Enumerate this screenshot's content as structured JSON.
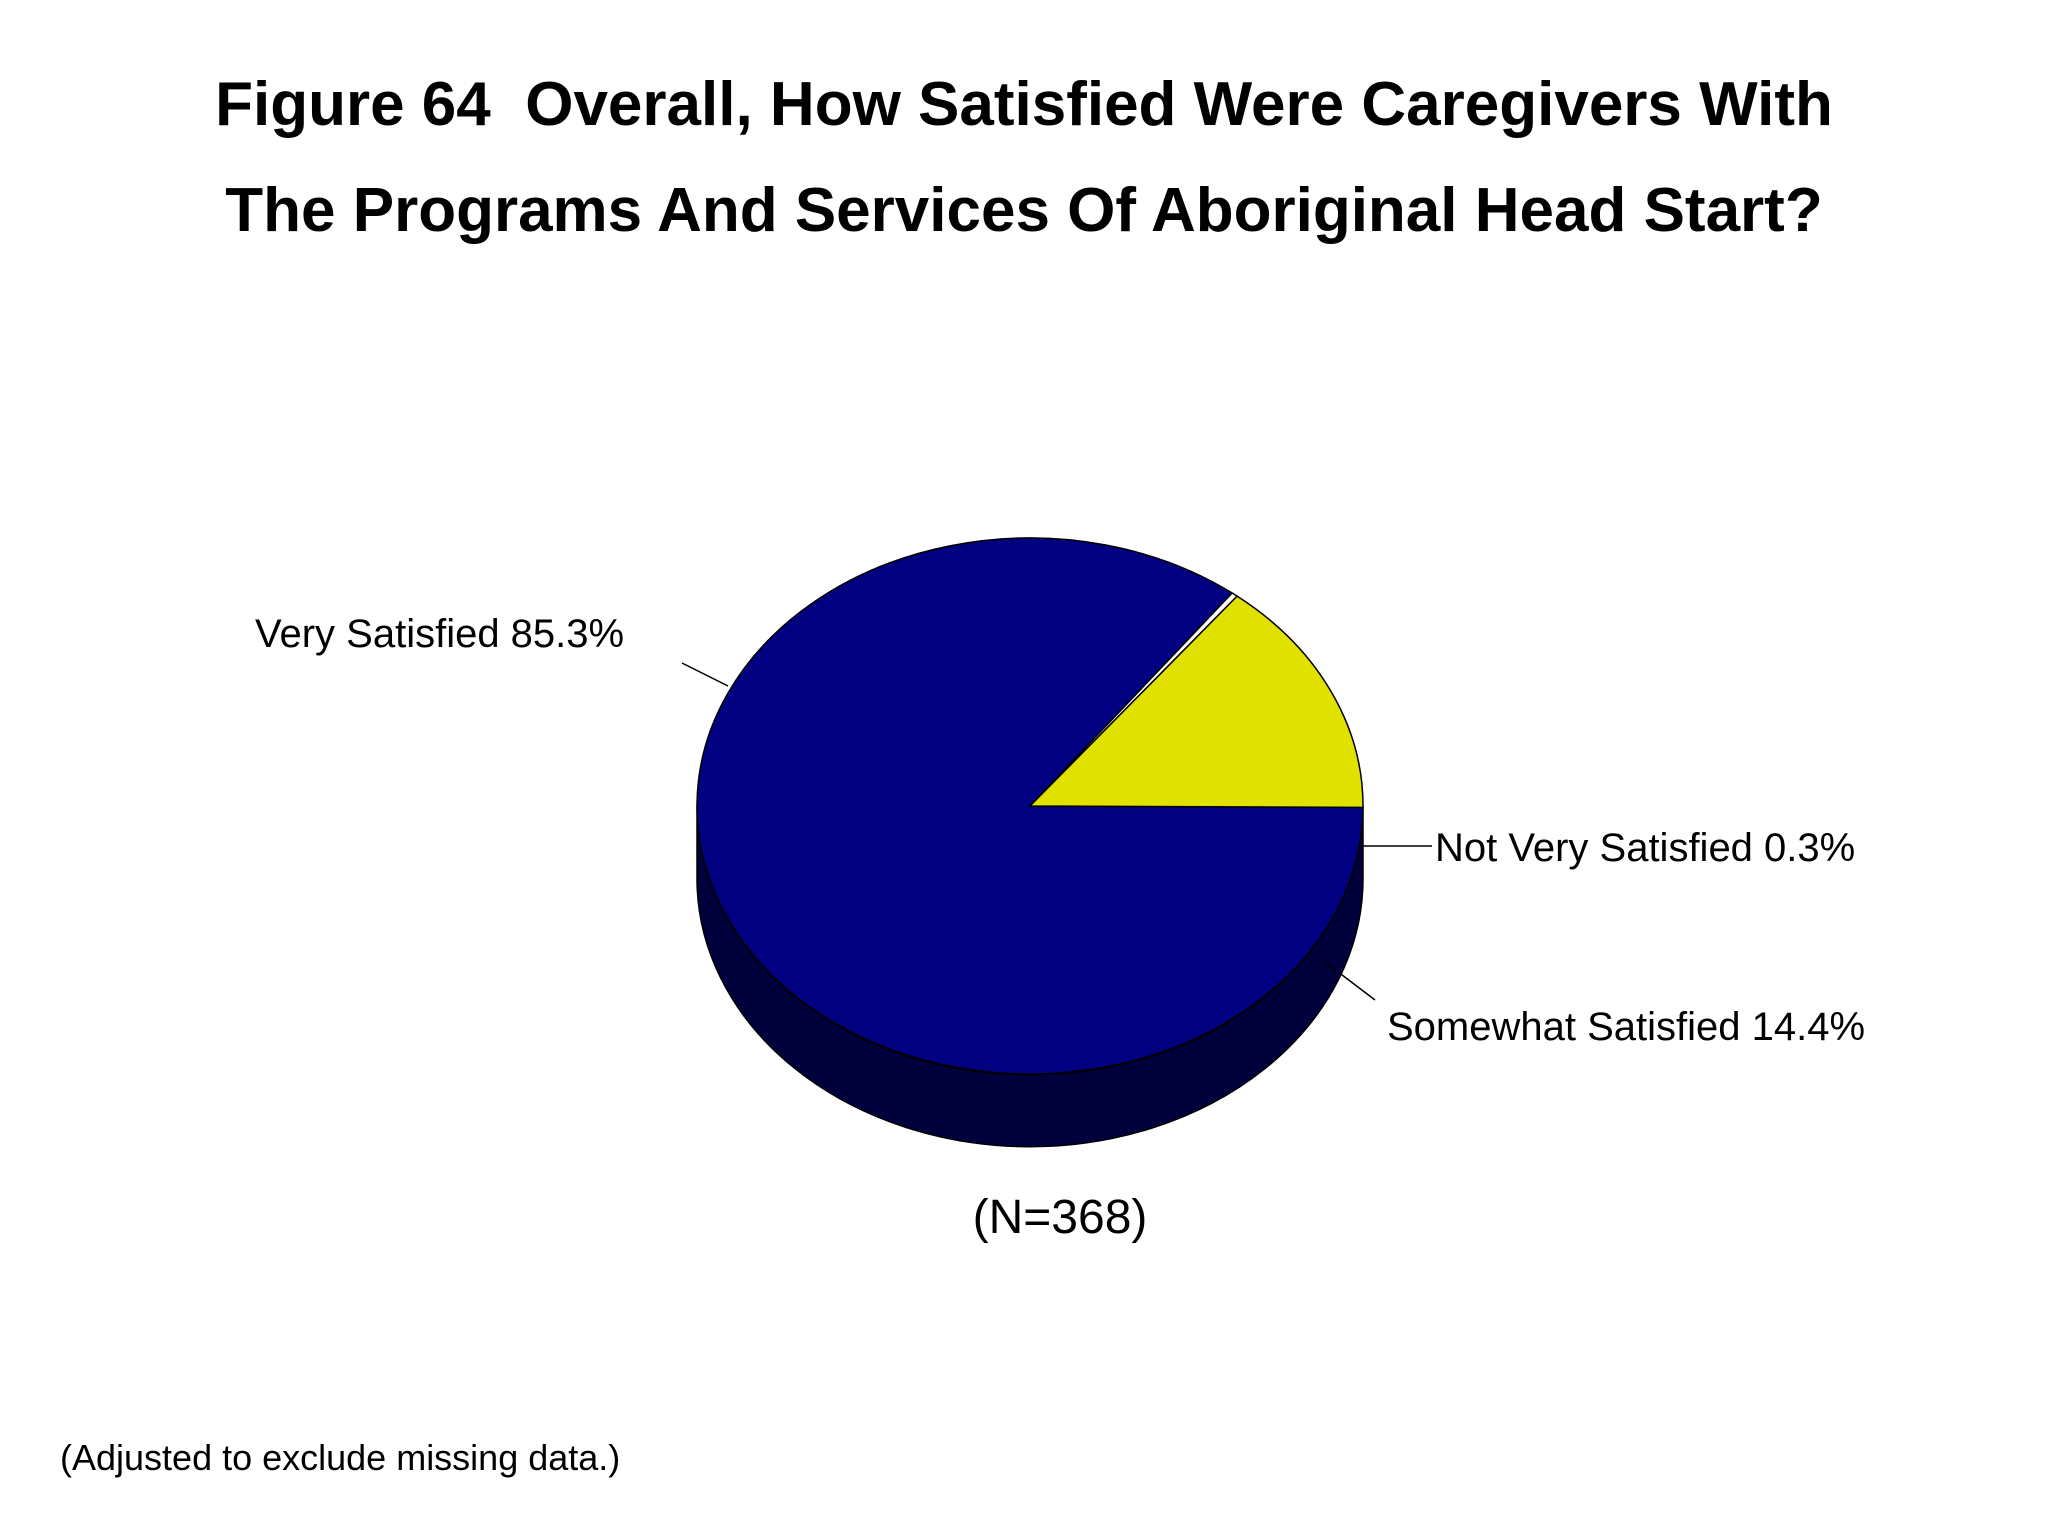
{
  "chart_data": {
    "type": "pie",
    "title_lines": [
      "Figure 64  Overall, How Satisfied Were Caregivers With",
      "The Programs And Services Of Aboriginal Head Start?"
    ],
    "slices": [
      {
        "label": "Very Satisfied 85.3%",
        "name": "Very Satisfied",
        "value": 85.3,
        "color": "#000080",
        "side_color": "#00003d"
      },
      {
        "label": "Not Very Satisfied 0.3%",
        "name": "Not Very Satisfied",
        "value": 0.3,
        "color": "#ffffff",
        "side_color": "#cccccc"
      },
      {
        "label": "Somewhat Satisfied 14.4%",
        "name": "Somewhat Satisfied",
        "value": 14.4,
        "color": "#e1e100",
        "side_color": "#707000"
      }
    ],
    "sample_size": "(N=368)",
    "footnote": "(Adjusted to exclude missing data.)"
  }
}
